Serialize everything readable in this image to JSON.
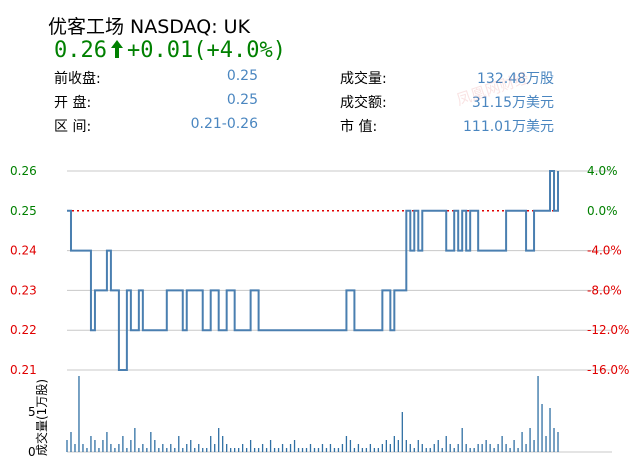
{
  "header": {
    "title": "优客工场 NASDAQ: UK",
    "price": "0.26",
    "change": "+0.01",
    "change_pct": "(+4.0%)"
  },
  "stats": {
    "left": [
      {
        "label": "前收盘:",
        "value": "0.25"
      },
      {
        "label": "开  盘:",
        "value": "0.25"
      },
      {
        "label": "区  间:",
        "value": "0.21-0.26"
      }
    ],
    "right": [
      {
        "label": "成交量:",
        "value": "132.48万股"
      },
      {
        "label": "成交额:",
        "value": "31.15万美元"
      },
      {
        "label": "市  值:",
        "value": "111.01万美元"
      }
    ]
  },
  "watermark": "凤凰网财经",
  "colors": {
    "up": "#008000",
    "down": "#e00000",
    "line": "#4a7fb0",
    "volume": "#2f6fa3",
    "grid": "#c8c8c8",
    "value": "#4a86c0"
  },
  "chart_data": [
    {
      "type": "line",
      "y_ticks_left": [
        "0.26",
        "0.25",
        "0.24",
        "0.23",
        "0.22",
        "0.21"
      ],
      "y_ticks_right": [
        "4.0%",
        "0.0%",
        "-4.0%",
        "-8.0%",
        "-12.0%",
        "-16.0%"
      ],
      "y_tick_values": [
        0.26,
        0.25,
        0.24,
        0.23,
        0.22,
        0.21
      ],
      "ylim": [
        0.21,
        0.26
      ],
      "reference_value": 0.25,
      "grid": true,
      "prices": [
        0.25,
        0.24,
        0.24,
        0.24,
        0.24,
        0.24,
        0.22,
        0.23,
        0.23,
        0.23,
        0.24,
        0.23,
        0.23,
        0.21,
        0.21,
        0.23,
        0.22,
        0.22,
        0.23,
        0.22,
        0.22,
        0.22,
        0.22,
        0.22,
        0.22,
        0.23,
        0.23,
        0.23,
        0.23,
        0.22,
        0.23,
        0.23,
        0.23,
        0.23,
        0.22,
        0.22,
        0.23,
        0.23,
        0.22,
        0.22,
        0.23,
        0.23,
        0.22,
        0.22,
        0.22,
        0.22,
        0.23,
        0.23,
        0.22,
        0.22,
        0.22,
        0.22,
        0.22,
        0.22,
        0.22,
        0.22,
        0.22,
        0.22,
        0.22,
        0.22,
        0.22,
        0.22,
        0.22,
        0.22,
        0.22,
        0.22,
        0.22,
        0.22,
        0.22,
        0.22,
        0.23,
        0.23,
        0.22,
        0.22,
        0.22,
        0.22,
        0.22,
        0.22,
        0.22,
        0.23,
        0.23,
        0.22,
        0.23,
        0.23,
        0.23,
        0.25,
        0.24,
        0.25,
        0.24,
        0.25,
        0.25,
        0.25,
        0.25,
        0.25,
        0.25,
        0.24,
        0.24,
        0.25,
        0.24,
        0.25,
        0.24,
        0.25,
        0.25,
        0.24,
        0.24,
        0.24,
        0.24,
        0.24,
        0.24,
        0.24,
        0.25,
        0.25,
        0.25,
        0.25,
        0.25,
        0.24,
        0.24,
        0.25,
        0.25,
        0.25,
        0.25,
        0.26,
        0.25,
        0.26
      ]
    },
    {
      "type": "bar",
      "ylabel": "成交量(1万股)",
      "y_ticks": [
        "5",
        "0"
      ],
      "y_tick_values": [
        5,
        0
      ],
      "ylim": [
        0,
        10
      ],
      "volumes": [
        1.5,
        2.5,
        1,
        9.5,
        1,
        0.5,
        2,
        1.5,
        0.5,
        1.5,
        2.5,
        1,
        0.5,
        1,
        2,
        0.5,
        1.5,
        3,
        0.5,
        1,
        0.5,
        2.5,
        1.5,
        0.5,
        1,
        0.5,
        1,
        0.5,
        2,
        0.5,
        1,
        1.5,
        0.5,
        1,
        0.5,
        0.5,
        2,
        1,
        3,
        2,
        1,
        0.5,
        0.5,
        0.5,
        1,
        0.5,
        1.5,
        0.5,
        0.5,
        1,
        0.5,
        1.5,
        0.5,
        0.5,
        1,
        0.5,
        1,
        1.5,
        0.5,
        0.5,
        0.5,
        1,
        0.5,
        0.5,
        1,
        0.5,
        1,
        0.5,
        0.5,
        1,
        2,
        1.5,
        0.5,
        1,
        0.5,
        0.5,
        1,
        0.5,
        0.5,
        1,
        1.5,
        1,
        2,
        1.5,
        5,
        1.5,
        1,
        0.5,
        1.5,
        1,
        0.5,
        0.5,
        1,
        1.5,
        0.5,
        2,
        1,
        0.5,
        1,
        3,
        1,
        0.5,
        0.5,
        1,
        1,
        1.5,
        1,
        0.5,
        1,
        2,
        1,
        0.5,
        1.5,
        0.5,
        2.5,
        1,
        3,
        1.5,
        9.5,
        6,
        2,
        5.5,
        3,
        2.5
      ]
    }
  ]
}
